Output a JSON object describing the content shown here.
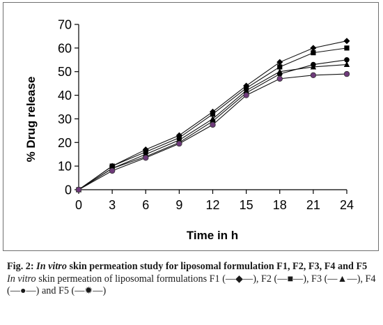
{
  "chart_data": {
    "type": "line",
    "xlabel": "Time in h",
    "ylabel": "% Drug release",
    "x": [
      0,
      3,
      6,
      9,
      12,
      15,
      18,
      21,
      24
    ],
    "xlim": [
      0,
      24
    ],
    "ylim": [
      0,
      70
    ],
    "yticks": [
      0,
      10,
      20,
      30,
      40,
      50,
      60,
      70
    ],
    "grid": false,
    "legend": "none",
    "series": [
      {
        "marker": "diamond",
        "color": "#000000",
        "values": [
          0,
          10,
          17,
          23,
          33,
          44,
          54,
          60,
          63
        ]
      },
      {
        "marker": "square",
        "color": "#000000",
        "values": [
          0,
          10,
          16,
          22,
          32,
          43,
          52,
          58,
          60
        ]
      },
      {
        "marker": "triangle",
        "color": "#000000",
        "values": [
          0,
          9,
          15,
          21,
          30,
          42,
          50,
          52,
          53
        ]
      },
      {
        "marker": "circle",
        "color": "#000000",
        "values": [
          0,
          9,
          14,
          20,
          29,
          41,
          49,
          53,
          55
        ]
      },
      {
        "marker": "circle",
        "color": "#6e3a7a",
        "values": [
          0,
          8,
          13.5,
          19.5,
          27.5,
          40,
          47,
          48.5,
          49
        ]
      }
    ]
  },
  "caption": {
    "label": "Fig. 2:",
    "title_italic": "In vitro",
    "title_rest": " skin permeation study for liposomal formulation F1, F2, F3, F4 and F5",
    "desc_italic": "In vitro",
    "desc_rest": " skin permeation of liposomal formulations F1 (—◆—), F2 (—■—), F3 (—▲—), F4 (—●—) and F5 (—✹—)"
  }
}
